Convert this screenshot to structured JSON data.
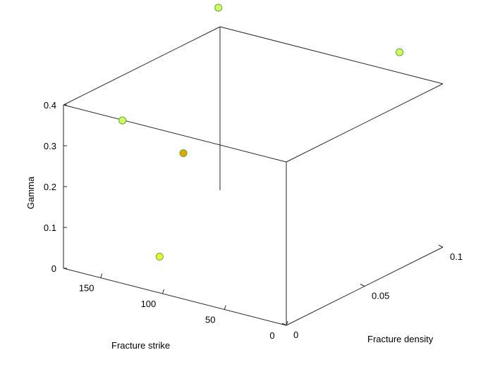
{
  "chart_data": {
    "type": "scatter3d",
    "title": "",
    "xlabel": "Fracture density",
    "ylabel": "Fracture strike",
    "zlabel": "Gamma",
    "xlim": [
      0,
      0.1
    ],
    "ylim": [
      0,
      180
    ],
    "zlim": [
      0,
      0.4
    ],
    "x_ticks": [
      0,
      0.05,
      0.1
    ],
    "x_tick_labels": [
      "0",
      "0.05",
      "0.1"
    ],
    "y_ticks": [
      0,
      50,
      100,
      150
    ],
    "y_tick_labels": [
      "0",
      "50",
      "100",
      "150"
    ],
    "z_ticks": [
      0,
      0.1,
      0.2,
      0.3,
      0.4
    ],
    "z_tick_labels": [
      "0",
      "0.1",
      "0.2",
      "0.3",
      "0.4"
    ],
    "grid": false,
    "box": true,
    "points": [
      {
        "x": 0.095,
        "y": 175,
        "z": 0.46,
        "color": "#CCFF66"
      },
      {
        "x": 0.01,
        "y": 145,
        "z": 0.37,
        "color": "#CCFF66"
      },
      {
        "x": 0.1,
        "y": 35,
        "z": 0.45,
        "color": "#CCFF66"
      },
      {
        "x": 0.075,
        "y": 178,
        "z": 0.14,
        "color": "#E0A800"
      },
      {
        "x": 0.01,
        "y": 115,
        "z": 0.06,
        "color": "#E6FF33"
      }
    ]
  }
}
